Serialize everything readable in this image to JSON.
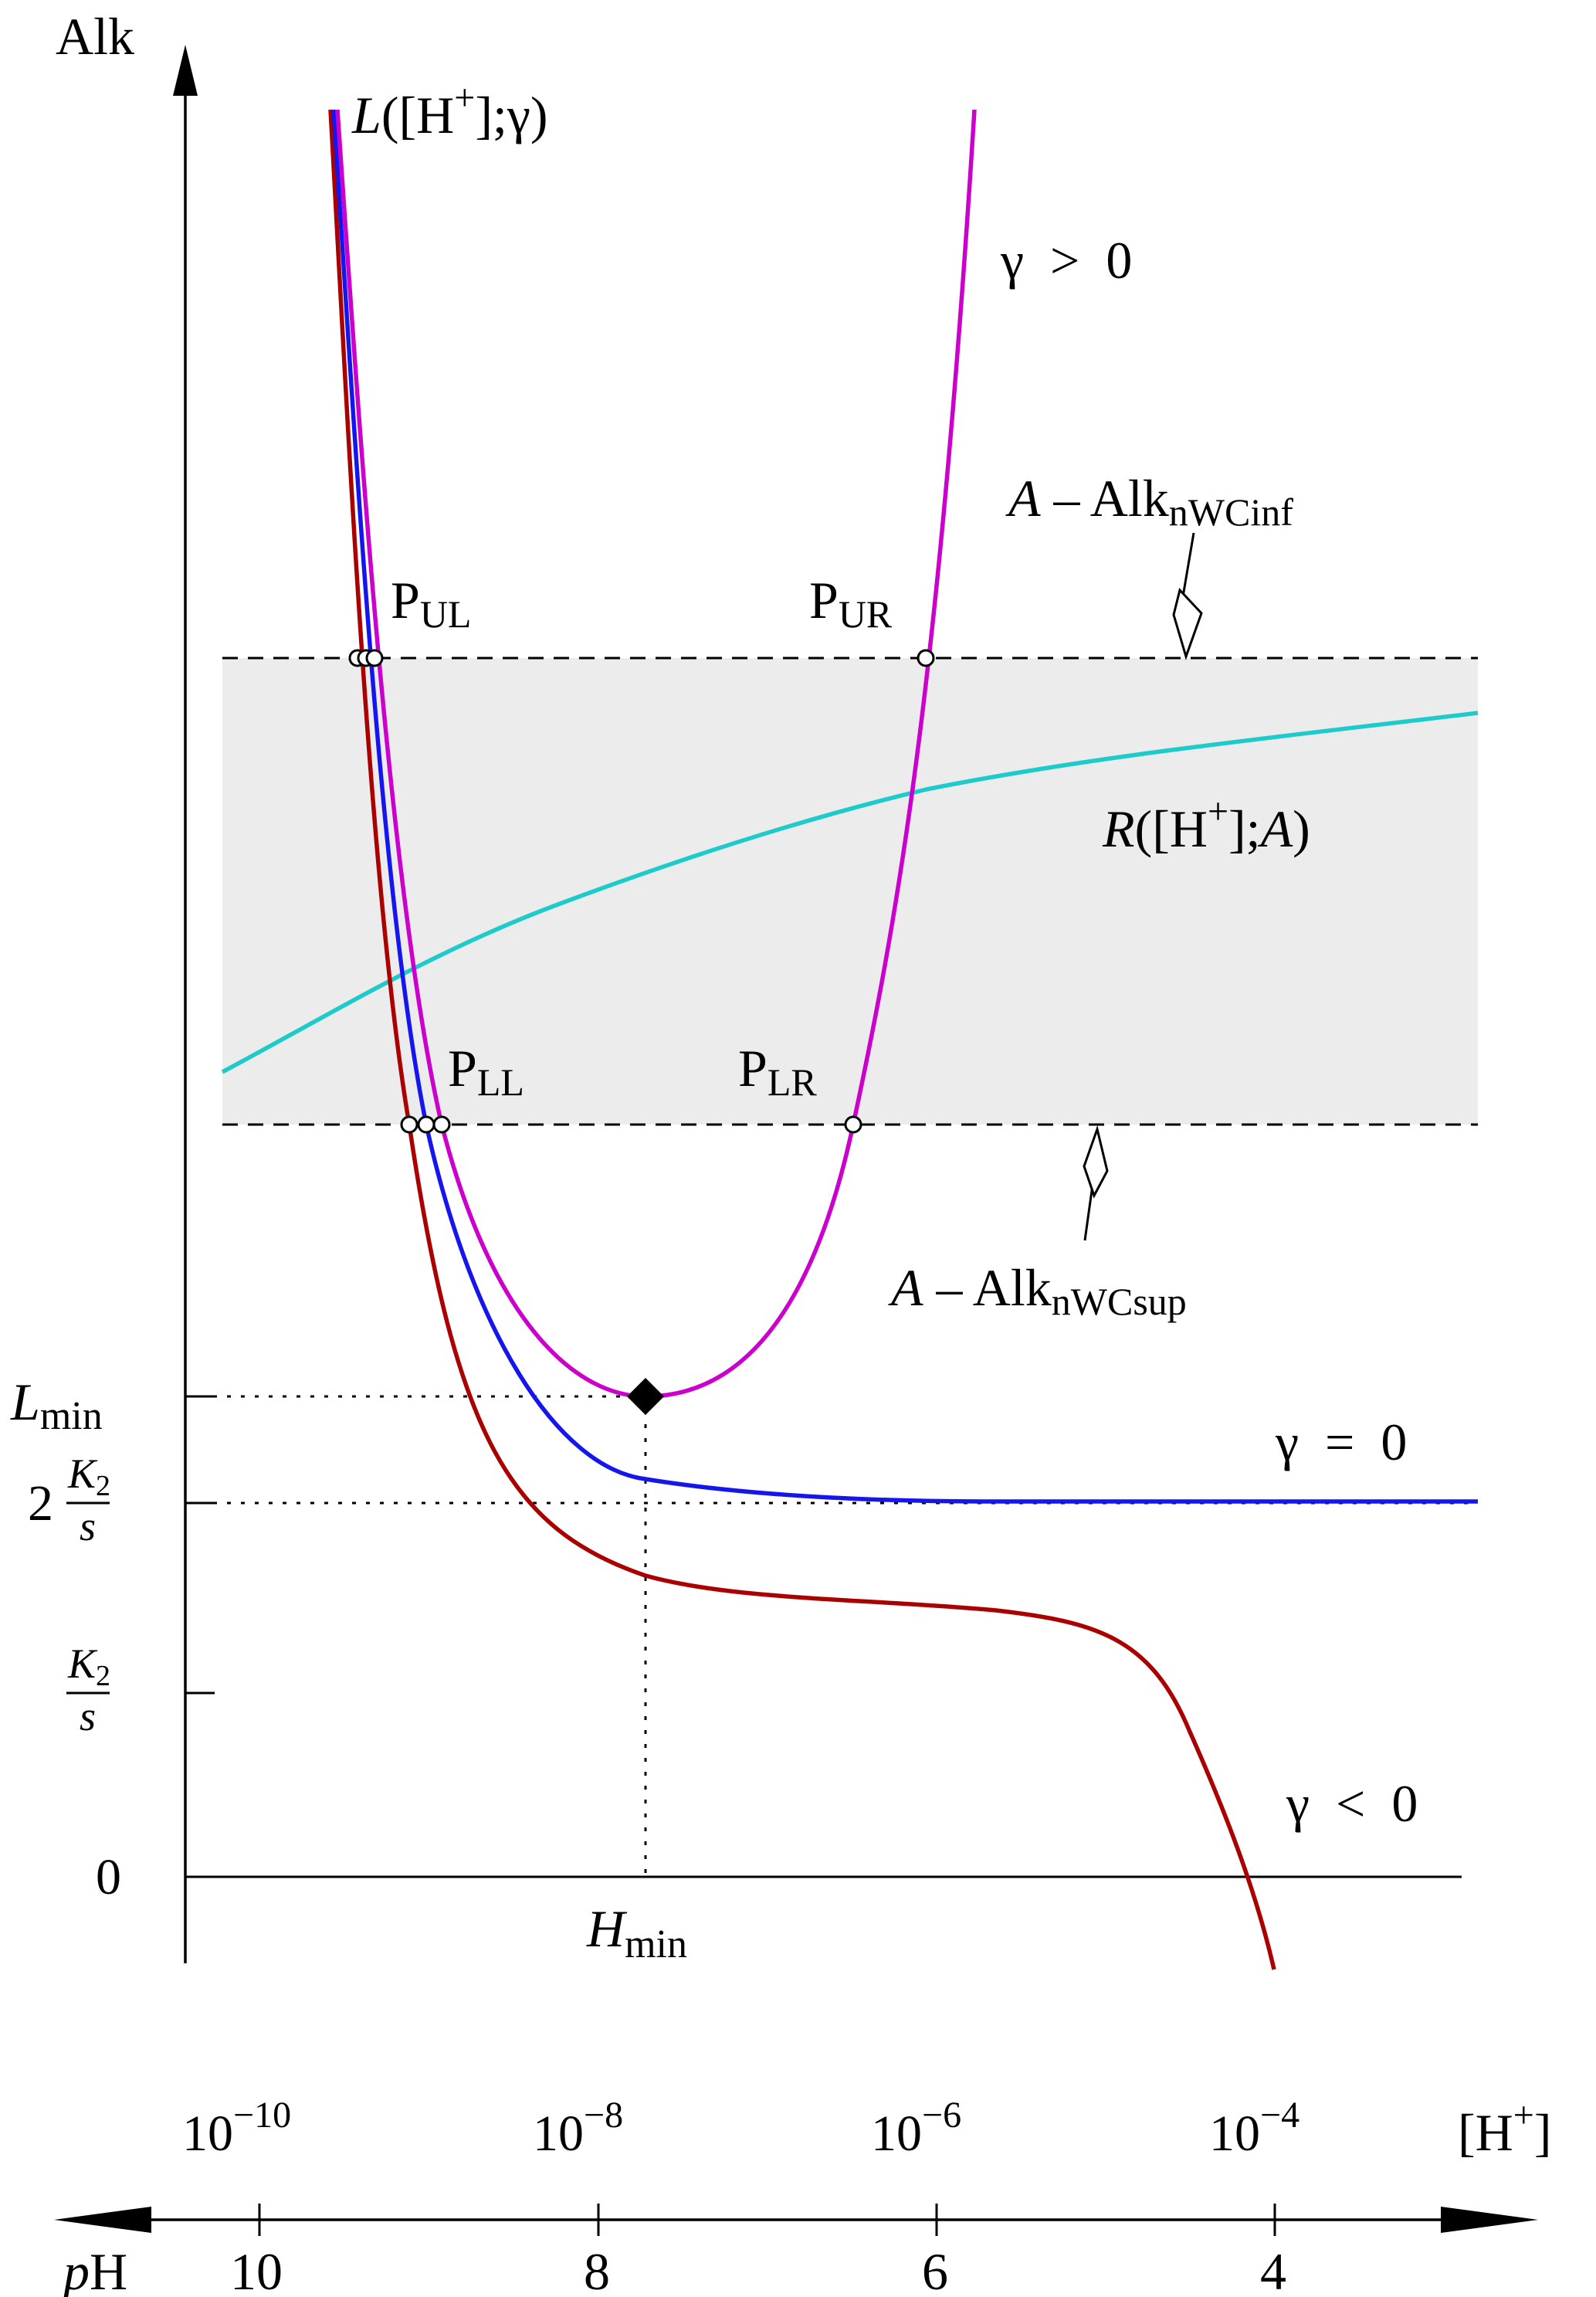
{
  "chart_data": {
    "type": "line",
    "title": "",
    "ylabel": "Alk",
    "xlabel_top": "[H+]",
    "xlabel_bottom": "pH",
    "x_scale": "log",
    "x_ticks": [
      {
        "value": "1e-10",
        "base": "10",
        "exp": "−10",
        "ph": "10"
      },
      {
        "value": "1e-8",
        "base": "10",
        "exp": "−8",
        "ph": "8"
      },
      {
        "value": "1e-6",
        "base": "10",
        "exp": "−6",
        "ph": "6"
      },
      {
        "value": "1e-4",
        "base": "10",
        "exp": "−4",
        "ph": "4"
      }
    ],
    "x_label_unit": {
      "open": "[H",
      "sup": "+",
      "close": "]"
    },
    "ph_label": {
      "p": "p",
      "h": "H"
    },
    "y_ticks": {
      "zero": "0",
      "k2s": {
        "num_k": "K",
        "num_sub": "2",
        "den": "s"
      },
      "two_k2s": {
        "coef": "2",
        "num_k": "K",
        "num_sub": "2",
        "den": "s"
      },
      "lmin": {
        "main": "L",
        "sub": "min"
      }
    },
    "h_min": {
      "main": "H",
      "sub": "min"
    },
    "series": [
      {
        "name": "γ > 0",
        "color": "#cc00cc"
      },
      {
        "name": "γ = 0",
        "color": "#1515ee"
      },
      {
        "name": "γ < 0",
        "color": "#aa0000"
      },
      {
        "name": "R([H+];A)",
        "color": "#1ecbcb"
      }
    ],
    "labels": {
      "gamma_pos": "γ  >  0",
      "gamma_zero": "γ  =  0",
      "gamma_neg": "γ  <  0",
      "L_curve": {
        "func": "L",
        "open": "([H",
        "sup": "+",
        "mid": "];",
        "param": "γ",
        "close": ")"
      },
      "R_curve": {
        "func": "R",
        "open": "([H",
        "sup": "+",
        "mid": "];",
        "param": "A",
        "close": ")"
      },
      "inf_line": {
        "a": "A",
        "rest": " – Alk",
        "sub": "nWCinf"
      },
      "sup_line": {
        "a": "A",
        "rest": " – Alk",
        "sub": "nWCsup"
      },
      "points": {
        "PUL": {
          "p": "P",
          "sub": "UL"
        },
        "PUR": {
          "p": "P",
          "sub": "UR"
        },
        "PLL": {
          "p": "P",
          "sub": "LL"
        },
        "PLR": {
          "p": "P",
          "sub": "LR"
        }
      }
    },
    "colors": {
      "band_fill": "#ececec",
      "axis": "#000000",
      "gamma_pos": "#cc00cc",
      "gamma_zero": "#1515ee",
      "gamma_neg": "#aa0000",
      "R_curve": "#1ecbcb"
    }
  }
}
